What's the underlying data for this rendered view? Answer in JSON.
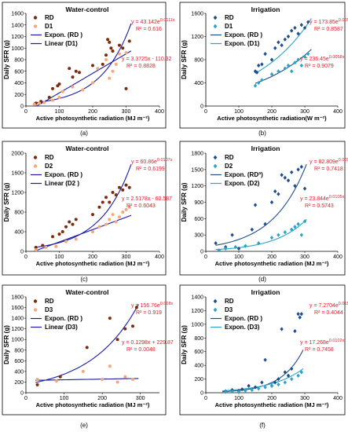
{
  "colors": {
    "rd_dark": "#7b2c0c",
    "d_light": "#f4a97a",
    "rd_blue": "#1f4e8c",
    "d_cyan": "#28a4c8",
    "curve_navy": "#1a1aa8",
    "eq_red": "#e0202a"
  },
  "chart_data": [
    {
      "id": "a",
      "type": "scatter",
      "title": "Water-control",
      "caption": "(a)",
      "xlabel": "Active photosynthetic radiation (MJ m⁻²)",
      "ylabel": "Daily SFR (g)",
      "xlim": [
        0,
        400
      ],
      "ylim": [
        0,
        1600
      ],
      "xticks": [
        0,
        100,
        200,
        300,
        400
      ],
      "yticks": [
        0,
        200,
        400,
        600,
        800,
        1000,
        1200,
        1400,
        1600
      ],
      "marker": "circle",
      "legend": [
        {
          "label": "RD",
          "kind": "marker",
          "series": 0
        },
        {
          "label": "D1",
          "kind": "marker",
          "series": 1
        },
        {
          "label": "Expon. (RD )",
          "kind": "line",
          "fit": 0
        },
        {
          "label": "Linear (D1)",
          "kind": "line",
          "fit": 1
        }
      ],
      "series": [
        {
          "name": "RD",
          "color": "#7b2c0c",
          "x": [
            30,
            45,
            70,
            80,
            95,
            100,
            130,
            140,
            150,
            160,
            200,
            230,
            240,
            245,
            250,
            255,
            260,
            280,
            290,
            300,
            310
          ],
          "y": [
            50,
            80,
            150,
            300,
            350,
            380,
            650,
            500,
            600,
            580,
            700,
            720,
            880,
            1150,
            1100,
            1000,
            950,
            1050,
            1000,
            300,
            1120
          ]
        },
        {
          "name": "D1",
          "color": "#f4a97a",
          "x": [
            25,
            40,
            55,
            80,
            100,
            110,
            140,
            170,
            200,
            215,
            240,
            250,
            260,
            270,
            280,
            300
          ],
          "y": [
            30,
            50,
            60,
            100,
            150,
            250,
            330,
            280,
            400,
            650,
            800,
            480,
            600,
            720,
            900,
            920
          ]
        }
      ],
      "fits": [
        {
          "kind": "exp",
          "a": 43.142,
          "b": 0.0111,
          "x_range": [
            25,
            315
          ],
          "color": "#1a1aa8",
          "dash": false
        },
        {
          "kind": "linear",
          "m": 3.3725,
          "c": -110.32,
          "x_range": [
            25,
            315
          ],
          "color": "#1a1aa8",
          "dash": false
        }
      ],
      "equations": [
        {
          "line1": "y = 43.142e",
          "sup": "0.0111x",
          "line2": "R² = 0.616"
        },
        {
          "line1": "y = 3.3725x - 110.32",
          "sup": "",
          "line2": "R² = 0.8828"
        }
      ]
    },
    {
      "id": "b",
      "type": "scatter",
      "title": "Irrigation",
      "caption": "(b)",
      "xlabel": "Active photosynthetic radiation(W m⁻²)",
      "ylabel": "Daily SFR (g)",
      "xlim": [
        0,
        400
      ],
      "ylim": [
        0,
        1600
      ],
      "xticks": [
        0,
        100,
        200,
        300,
        400
      ],
      "yticks": [
        0,
        400,
        800,
        1200,
        1600
      ],
      "marker": "diamond",
      "legend": [
        {
          "label": "RD",
          "kind": "marker",
          "series": 0
        },
        {
          "label": "D1",
          "kind": "marker",
          "series": 1
        },
        {
          "label": "Expon. (RD )",
          "kind": "line",
          "fit": 0
        },
        {
          "label": "Expon. (D1)",
          "kind": "line",
          "fit": 1
        }
      ],
      "series": [
        {
          "name": "RD",
          "color": "#1f4e8c",
          "x": [
            150,
            155,
            160,
            170,
            180,
            200,
            210,
            220,
            230,
            240,
            250,
            260,
            270,
            280,
            290,
            300,
            310
          ],
          "y": [
            600,
            580,
            700,
            720,
            900,
            800,
            1000,
            1100,
            1050,
            1150,
            1200,
            1300,
            1350,
            1250,
            1400,
            1350,
            1450
          ]
        },
        {
          "name": "D1",
          "color": "#28a4c8",
          "x": [
            150,
            160,
            170,
            200,
            220,
            240,
            250,
            260,
            270,
            280,
            290,
            300,
            310
          ],
          "y": [
            350,
            400,
            450,
            550,
            600,
            650,
            700,
            600,
            750,
            800,
            700,
            850,
            900
          ]
        }
      ],
      "fits": [
        {
          "kind": "exp",
          "a": 173.85,
          "b": 0.0054,
          "x_range": [
            150,
            320
          ],
          "color": "#1f4e8c",
          "dash": false
        },
        {
          "kind": "exp",
          "a": 236.45,
          "b": 0.0058,
          "x_range": [
            150,
            320
          ],
          "color": "#28a4c8",
          "dash": false
        }
      ],
      "equations": [
        {
          "line1": "y = 173.85e",
          "sup": "0.0054x",
          "line2": "R² = 0.8587"
        },
        {
          "line1": "y = 236.45e",
          "sup": "0.0058x",
          "line2": "R² = 0.9079"
        }
      ]
    },
    {
      "id": "c",
      "type": "scatter",
      "title": "Water-control",
      "caption": "(c)",
      "xlabel": "Active photosynthetic radiation (MJ m⁻²)",
      "ylabel": "Daily SFR (g)",
      "xlim": [
        0,
        400
      ],
      "ylim": [
        0,
        2000
      ],
      "xticks": [
        0,
        100,
        200,
        300,
        400
      ],
      "yticks": [
        0,
        400,
        800,
        1200,
        1600,
        2000
      ],
      "marker": "circle",
      "legend": [
        {
          "label": "RD",
          "kind": "marker",
          "series": 0
        },
        {
          "label": "D2",
          "kind": "marker",
          "series": 1
        },
        {
          "label": "Expon. (RD )",
          "kind": "line",
          "fit": 0
        },
        {
          "label": "Linear (D2 )",
          "kind": "line",
          "fit": 1
        }
      ],
      "series": [
        {
          "name": "RD",
          "color": "#7b2c0c",
          "x": [
            30,
            50,
            80,
            100,
            110,
            120,
            130,
            140,
            150,
            200,
            220,
            230,
            240,
            250,
            260,
            270,
            280,
            290,
            300,
            310
          ],
          "y": [
            80,
            120,
            300,
            350,
            400,
            500,
            600,
            550,
            650,
            750,
            900,
            1000,
            1100,
            1000,
            1200,
            1150,
            1300,
            1250,
            1350,
            1300
          ]
        },
        {
          "name": "D2",
          "color": "#f4a97a",
          "x": [
            30,
            60,
            90,
            120,
            150,
            200,
            220,
            240,
            250,
            260,
            270,
            280,
            290,
            300,
            310
          ],
          "y": [
            30,
            80,
            100,
            200,
            250,
            400,
            500,
            550,
            650,
            750,
            600,
            700,
            800,
            850,
            900
          ]
        }
      ],
      "fits": [
        {
          "kind": "exp",
          "a": 60.86,
          "b": 0.0107,
          "x_range": [
            25,
            315
          ],
          "color": "#1a1aa8",
          "dash": false
        },
        {
          "kind": "linear",
          "m": 2.5178,
          "c": -60.587,
          "x_range": [
            25,
            315
          ],
          "color": "#1a1aa8",
          "dash": false
        }
      ],
      "equations": [
        {
          "line1": "y = 60.86e",
          "sup": "0.0107x",
          "line2": "R² = 0.6199"
        },
        {
          "line1": "y = 2.5178x - 60.587",
          "sup": "",
          "line2": "R² = 0.6043"
        }
      ]
    },
    {
      "id": "d",
      "type": "scatter",
      "title": "Irrigation",
      "caption": "(d)",
      "xlabel": "Active photosynthetic radiation (MJ m⁻²)",
      "ylabel": "Daily SFR (g)",
      "xlim": [
        0,
        400
      ],
      "ylim": [
        0,
        1800
      ],
      "xticks": [
        0,
        100,
        200,
        300,
        400
      ],
      "yticks": [
        0,
        300,
        600,
        900,
        1200,
        1500,
        1800
      ],
      "marker": "diamond",
      "legend": [
        {
          "label": "RD",
          "kind": "marker",
          "series": 0
        },
        {
          "label": "D2",
          "kind": "marker",
          "series": 1
        },
        {
          "label": "Expon. (RDª)",
          "kind": "line",
          "fit": 0
        },
        {
          "label": "Expon. (D2)",
          "kind": "line",
          "fit": 1
        }
      ],
      "series": [
        {
          "name": "RD",
          "color": "#1f4e8c",
          "x": [
            30,
            60,
            80,
            100,
            140,
            150,
            180,
            200,
            210,
            220,
            230,
            240,
            250,
            260,
            270,
            280,
            290,
            300
          ],
          "y": [
            150,
            80,
            300,
            50,
            400,
            850,
            500,
            900,
            1100,
            1050,
            1400,
            1350,
            1300,
            1450,
            1200,
            1500,
            1550,
            1150
          ]
        },
        {
          "name": "D2",
          "color": "#28a4c8",
          "x": [
            40,
            60,
            90,
            120,
            160,
            200,
            220,
            240,
            260,
            270,
            280,
            290,
            300
          ],
          "y": [
            20,
            50,
            80,
            100,
            150,
            250,
            300,
            350,
            400,
            450,
            500,
            300,
            550
          ]
        }
      ],
      "fits": [
        {
          "kind": "exp",
          "a": 82.809,
          "b": 0.0097,
          "x_range": [
            30,
            305
          ],
          "color": "#1f4e8c",
          "dash": false
        },
        {
          "kind": "exp",
          "a": 23.844,
          "b": 0.0105,
          "x_range": [
            30,
            305
          ],
          "color": "#28a4c8",
          "dash": false
        }
      ],
      "equations": [
        {
          "line1": "y = 82.809e",
          "sup": "0.0097x",
          "line2": "R² = 0.7418"
        },
        {
          "line1": "y = 23.844e",
          "sup": "0.0105x",
          "line2": "R² = 0.5743"
        }
      ]
    },
    {
      "id": "e",
      "type": "scatter",
      "title": "Water-control",
      "caption": "(e)",
      "xlabel": "Active photosynthetic radiation (MJ m⁻²)",
      "ylabel": "Daily SFR (g)",
      "xlim": [
        0,
        350
      ],
      "ylim": [
        0,
        1800
      ],
      "xticks": [
        0,
        100,
        200,
        300
      ],
      "yticks": [
        0,
        200,
        400,
        600,
        800,
        1000,
        1200,
        1400,
        1600,
        1800
      ],
      "marker": "circle",
      "legend": [
        {
          "label": "RD",
          "kind": "marker",
          "series": 0
        },
        {
          "label": "D3",
          "kind": "marker",
          "series": 1
        },
        {
          "label": "Expon. (RD )",
          "kind": "line",
          "fit": 0
        },
        {
          "label": "Linear (D3)",
          "kind": "line",
          "fit": 1
        }
      ],
      "series": [
        {
          "name": "RD",
          "color": "#7b2c0c",
          "x": [
            30,
            90,
            160,
            220,
            240,
            260,
            280,
            290
          ],
          "y": [
            150,
            300,
            850,
            1400,
            1000,
            1200,
            1250,
            1600
          ]
        },
        {
          "name": "D3",
          "color": "#f4a97a",
          "x": [
            30,
            80,
            150,
            200,
            220,
            240,
            260,
            280
          ],
          "y": [
            250,
            220,
            400,
            250,
            500,
            200,
            300,
            250
          ]
        }
      ],
      "fits": [
        {
          "kind": "exp",
          "a": 156.76,
          "b": 0.008,
          "x_range": [
            25,
            295
          ],
          "color": "#1a1aa8",
          "dash": false
        },
        {
          "kind": "linear",
          "m": 0.1298,
          "c": 229.87,
          "x_range": [
            25,
            295
          ],
          "color": "#1a1aa8",
          "dash": false
        }
      ],
      "equations": [
        {
          "line1": "y = 156.76e",
          "sup": "0.008x",
          "line2": "R² = 0.919"
        },
        {
          "line1": "y = 0.1298x + 229.87",
          "sup": "",
          "line2": "R² = 0.0048"
        }
      ]
    },
    {
      "id": "f",
      "type": "scatter",
      "title": "Irrigation",
      "caption": "(f)",
      "xlabel": "Active photosynthetic radiation (MJ m⁻²)",
      "ylabel": "Daily SFR (g)",
      "xlim": [
        0,
        400
      ],
      "ylim": [
        0,
        1400
      ],
      "xticks": [
        0,
        100,
        200,
        300,
        400
      ],
      "yticks": [
        0,
        200,
        400,
        600,
        800,
        1000,
        1200,
        1400
      ],
      "marker": "diamond",
      "legend": [
        {
          "label": "RD",
          "kind": "marker",
          "series": 0
        },
        {
          "label": "D3",
          "kind": "marker",
          "series": 1
        },
        {
          "label": "Expon. (RD )",
          "kind": "line",
          "fit": 0
        },
        {
          "label": "Expon. (D3)",
          "kind": "line",
          "fit": 1
        }
      ],
      "series": [
        {
          "name": "RD",
          "color": "#1f4e8c",
          "x": [
            60,
            80,
            100,
            110,
            130,
            150,
            170,
            180,
            200,
            210,
            220,
            230,
            240,
            250,
            260,
            270,
            280,
            285,
            290
          ],
          "y": [
            20,
            40,
            30,
            50,
            100,
            80,
            150,
            480,
            100,
            150,
            200,
            930,
            300,
            250,
            350,
            900,
            1150,
            1100,
            1150
          ]
        },
        {
          "name": "D3",
          "color": "#28a4c8",
          "x": [
            60,
            80,
            100,
            120,
            140,
            160,
            180,
            200,
            220,
            240,
            260,
            280,
            290
          ],
          "y": [
            10,
            20,
            15,
            30,
            40,
            60,
            80,
            100,
            120,
            150,
            200,
            250,
            300
          ]
        }
      ],
      "fits": [
        {
          "kind": "exp",
          "a": 7.2704,
          "b": 0.0151,
          "x_range": [
            50,
            295
          ],
          "color": "#1f4e8c",
          "dash": false
        },
        {
          "kind": "exp",
          "a": 17.268,
          "b": 0.0102,
          "x_range": [
            50,
            295
          ],
          "color": "#28a4c8",
          "dash": false
        }
      ],
      "equations": [
        {
          "line1": "y = 7.2704e",
          "sup": "0.0151x",
          "line2": "R² = 0.4044"
        },
        {
          "line1": "y = 17.268e",
          "sup": "0.0102x",
          "line2": "R² = 0.7458"
        }
      ]
    }
  ]
}
